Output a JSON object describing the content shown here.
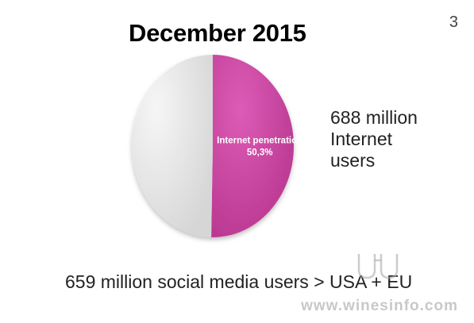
{
  "page_number": "3",
  "title": "December 2015",
  "side_note": {
    "line1": "688 million",
    "line2": "Internet",
    "line3": "users"
  },
  "bottom_note": "659 million social media users > USA + EU",
  "watermark": "www.winesinfo.com",
  "colors": {
    "highlight": "#c23f9c",
    "highlight_light": "#dc5cb6",
    "rest": "#e2e2e2",
    "rest_light": "#f4f4f4"
  },
  "chart_data": {
    "type": "pie",
    "slices": [
      {
        "label": "Internet penetration",
        "value_label": "50,3%",
        "value": 50.3,
        "color": "#c23f9c"
      },
      {
        "label": "",
        "value_label": "",
        "value": 49.7,
        "color": "#e2e2e2"
      }
    ]
  }
}
